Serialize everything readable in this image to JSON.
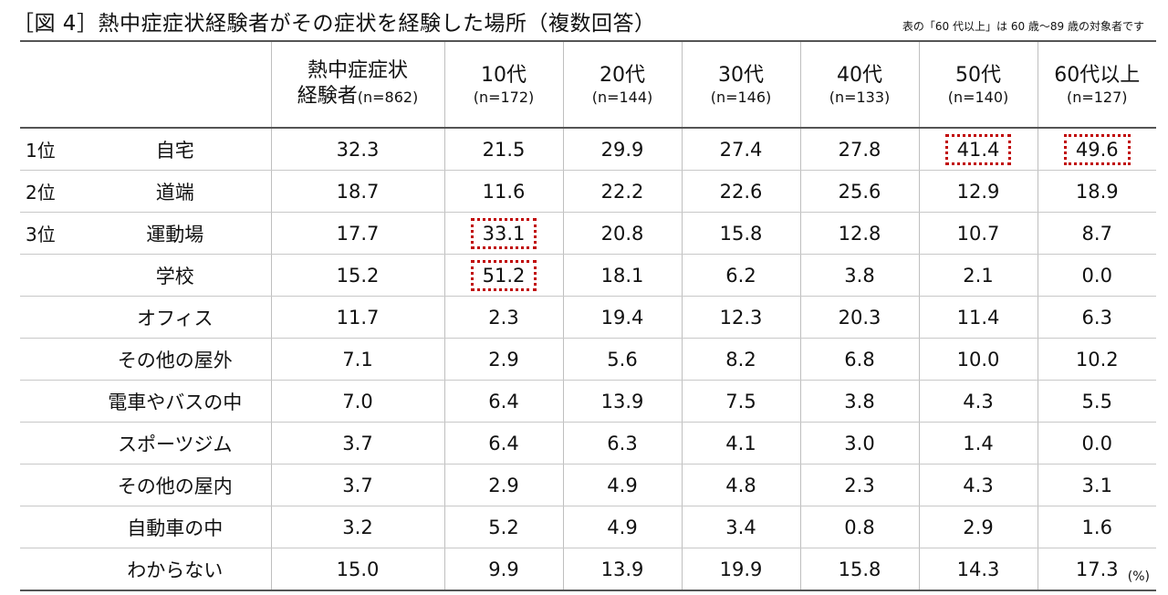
{
  "title": "［図 4］熱中症症状経験者がその症状を経験した場所（複数回答）",
  "note": "表の「60 代以上」は 60 歳～89 歳の対象者です",
  "unit": "(%)",
  "header": {
    "total_line1": "熱中症症状",
    "total_line2": "経験者",
    "total_n": "(n=862)",
    "age_groups": [
      {
        "label": "10代",
        "n": "(n=172)"
      },
      {
        "label": "20代",
        "n": "(n=144)"
      },
      {
        "label": "30代",
        "n": "(n=146)"
      },
      {
        "label": "40代",
        "n": "(n=133)"
      },
      {
        "label": "50代",
        "n": "(n=140)"
      },
      {
        "label": "60代以上",
        "n": "(n=127)"
      }
    ]
  },
  "chart_data": {
    "type": "table",
    "columns": [
      "熱中症症状経験者(n=862)",
      "10代(n=172)",
      "20代(n=144)",
      "30代(n=146)",
      "40代(n=133)",
      "50代(n=140)",
      "60代以上(n=127)"
    ],
    "rows": [
      {
        "rank": "1位",
        "place": "自宅",
        "values": [
          "32.3",
          "21.5",
          "29.9",
          "27.4",
          "27.8",
          "41.4",
          "49.6"
        ],
        "highlight": [
          5,
          6
        ]
      },
      {
        "rank": "2位",
        "place": "道端",
        "values": [
          "18.7",
          "11.6",
          "22.2",
          "22.6",
          "25.6",
          "12.9",
          "18.9"
        ],
        "highlight": []
      },
      {
        "rank": "3位",
        "place": "運動場",
        "values": [
          "17.7",
          "33.1",
          "20.8",
          "15.8",
          "12.8",
          "10.7",
          "8.7"
        ],
        "highlight": [
          1
        ]
      },
      {
        "rank": "",
        "place": "学校",
        "values": [
          "15.2",
          "51.2",
          "18.1",
          "6.2",
          "3.8",
          "2.1",
          "0.0"
        ],
        "highlight": [
          1
        ]
      },
      {
        "rank": "",
        "place": "オフィス",
        "values": [
          "11.7",
          "2.3",
          "19.4",
          "12.3",
          "20.3",
          "11.4",
          "6.3"
        ],
        "highlight": []
      },
      {
        "rank": "",
        "place": "その他の屋外",
        "values": [
          "7.1",
          "2.9",
          "5.6",
          "8.2",
          "6.8",
          "10.0",
          "10.2"
        ],
        "highlight": []
      },
      {
        "rank": "",
        "place": "電車やバスの中",
        "values": [
          "7.0",
          "6.4",
          "13.9",
          "7.5",
          "3.8",
          "4.3",
          "5.5"
        ],
        "highlight": []
      },
      {
        "rank": "",
        "place": "スポーツジム",
        "values": [
          "3.7",
          "6.4",
          "6.3",
          "4.1",
          "3.0",
          "1.4",
          "0.0"
        ],
        "highlight": []
      },
      {
        "rank": "",
        "place": "その他の屋内",
        "values": [
          "3.7",
          "2.9",
          "4.9",
          "4.8",
          "2.3",
          "4.3",
          "3.1"
        ],
        "highlight": []
      },
      {
        "rank": "",
        "place": "自動車の中",
        "values": [
          "3.2",
          "5.2",
          "4.9",
          "3.4",
          "0.8",
          "2.9",
          "1.6"
        ],
        "highlight": []
      },
      {
        "rank": "",
        "place": "わからない",
        "values": [
          "15.0",
          "9.9",
          "13.9",
          "19.9",
          "15.8",
          "14.3",
          "17.3"
        ],
        "highlight": []
      }
    ],
    "highlight_color": "#c00000"
  }
}
